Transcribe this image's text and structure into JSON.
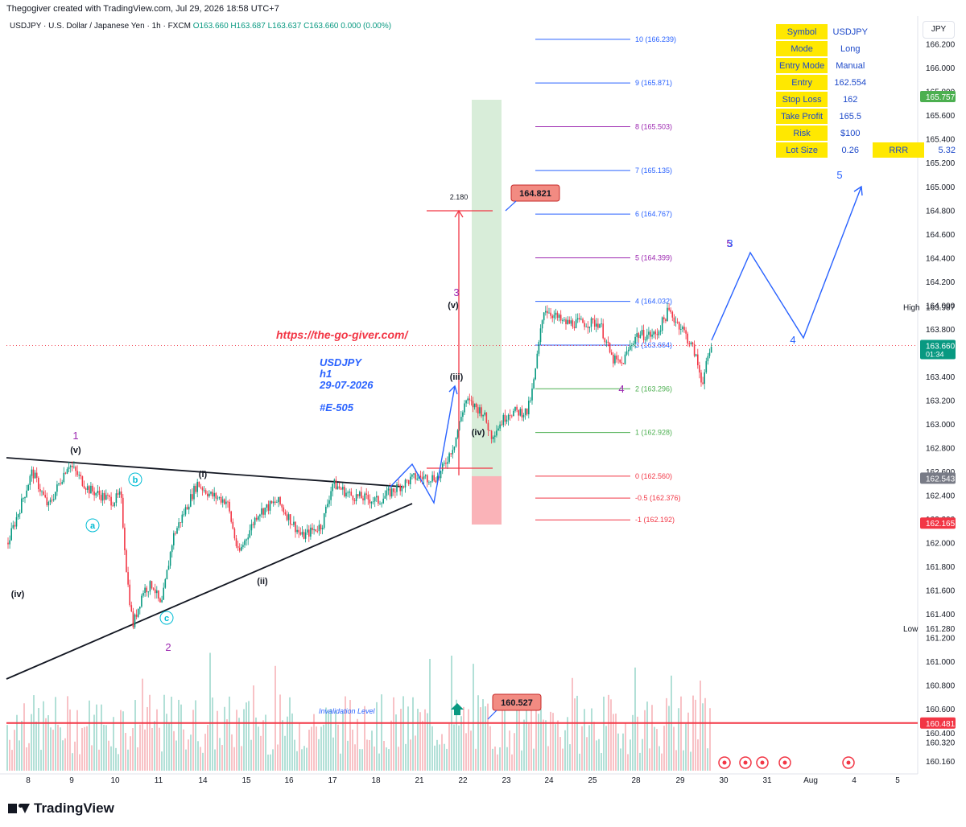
{
  "attribution": "Thegogiver created with TradingView.com, Jul 29, 2026 18:58 UTC+7",
  "legend": {
    "symbol": "USDJPY · U.S. Dollar / Japanese Yen · 1h · FXCM",
    "open": "O163.660",
    "high": "H163.687",
    "low": "L163.637",
    "close": "C163.660",
    "change": "0.000 (0.00%)"
  },
  "currency": "JPY",
  "brand": "TradingView",
  "info_table": {
    "rows": [
      {
        "key": "Symbol",
        "value": "USDJPY"
      },
      {
        "key": "Mode",
        "value": "Long"
      },
      {
        "key": "Entry Mode",
        "value": "Manual"
      },
      {
        "key": "Entry",
        "value": "162.554"
      },
      {
        "key": "Stop Loss",
        "value": "162"
      },
      {
        "key": "Take Profit",
        "value": "165.5"
      },
      {
        "key": "Risk",
        "value": "$100"
      },
      {
        "key": "Lot Size",
        "value": "0.26",
        "key2": "RRR",
        "value2": "5.32"
      }
    ]
  },
  "chart_data": {
    "type": "candlestick",
    "ylim": [
      160.08,
      166.36
    ],
    "y_ticks": [
      166.2,
      166.0,
      165.8,
      165.6,
      165.4,
      165.2,
      165.0,
      164.8,
      164.6,
      164.4,
      164.2,
      164.0,
      163.8,
      163.6,
      163.4,
      163.2,
      163.0,
      162.8,
      162.6,
      162.4,
      162.2,
      162.0,
      161.8,
      161.6,
      161.4,
      161.2,
      161.0,
      160.8,
      160.6,
      160.4,
      160.32,
      160.16
    ],
    "x_ticks": [
      "8",
      "9",
      "10",
      "11",
      "14",
      "15",
      "16",
      "17",
      "18",
      "21",
      "22",
      "23",
      "24",
      "25",
      "28",
      "29",
      "30",
      "31",
      "Aug",
      "4",
      "5"
    ],
    "price_labels": [
      {
        "text": "165.757",
        "price": 165.757,
        "color": "#4caf50"
      },
      {
        "text": "163.987",
        "price": 163.987,
        "color": "#ffffff",
        "prefix": "High"
      },
      {
        "text": "163.660",
        "price": 163.66,
        "color": "#089981",
        "sub": "01:34"
      },
      {
        "text": "162.543",
        "price": 162.543,
        "color": "#787b86"
      },
      {
        "text": "162.165",
        "price": 162.165,
        "color": "#f23645"
      },
      {
        "text": "161.280",
        "price": 161.28,
        "color": "#ffffff",
        "prefix": "Low"
      },
      {
        "text": "160.481",
        "price": 160.481,
        "color": "#f23645"
      }
    ],
    "fib_levels": [
      {
        "label": "10 (166.239)",
        "price": 166.239,
        "color": "#2962ff"
      },
      {
        "label": "9 (165.871)",
        "price": 165.871,
        "color": "#2962ff"
      },
      {
        "label": "8 (165.503)",
        "price": 165.503,
        "color": "#9c27b0"
      },
      {
        "label": "7 (165.135)",
        "price": 165.135,
        "color": "#2962ff"
      },
      {
        "label": "6 (164.767)",
        "price": 164.767,
        "color": "#2962ff"
      },
      {
        "label": "5 (164.399)",
        "price": 164.399,
        "color": "#9c27b0"
      },
      {
        "label": "4 (164.032)",
        "price": 164.032,
        "color": "#2962ff"
      },
      {
        "label": "3 (163.664)",
        "price": 163.664,
        "color": "#2962ff"
      },
      {
        "label": "2 (163.296)",
        "price": 163.296,
        "color": "#4caf50"
      },
      {
        "label": "1 (162.928)",
        "price": 162.928,
        "color": "#4caf50"
      },
      {
        "label": "0 (162.560)",
        "price": 162.56,
        "color": "#f23645"
      },
      {
        "label": "-0.5 (162.376)",
        "price": 162.376,
        "color": "#f23645"
      },
      {
        "label": "-1 (162.192)",
        "price": 162.192,
        "color": "#f23645"
      }
    ],
    "annotations": {
      "url": "https://the-go-giver.com/",
      "title_lines": [
        "USDJPY",
        "h1",
        "29-07-2026",
        "#E-505"
      ],
      "invalidation": "Invalidation Level",
      "target_box": "164.821",
      "bottom_box": "160.527",
      "measure": "2.180"
    },
    "wave_labels": [
      {
        "text": "1",
        "color": "#9c27b0"
      },
      {
        "text": "(v)",
        "color": "#131722"
      },
      {
        "text": "(iv)",
        "color": "#131722"
      },
      {
        "text": "a",
        "color": "#00bcd4"
      },
      {
        "text": "b",
        "color": "#00bcd4"
      },
      {
        "text": "c",
        "color": "#00bcd4"
      },
      {
        "text": "2",
        "color": "#9c27b0"
      },
      {
        "text": "(i)",
        "color": "#131722"
      },
      {
        "text": "(ii)",
        "color": "#131722"
      },
      {
        "text": "(iii)",
        "color": "#131722"
      },
      {
        "text": "3",
        "color": "#9c27b0"
      },
      {
        "text": "(v)",
        "color": "#131722"
      },
      {
        "text": "(iv)",
        "color": "#131722"
      },
      {
        "text": "4",
        "color": "#9c27b0"
      },
      {
        "text": "5",
        "color": "#9c27b0"
      },
      {
        "text": "3",
        "color": "#2962ff"
      },
      {
        "text": "4",
        "color": "#2962ff"
      },
      {
        "text": "5",
        "color": "#2962ff"
      }
    ]
  }
}
